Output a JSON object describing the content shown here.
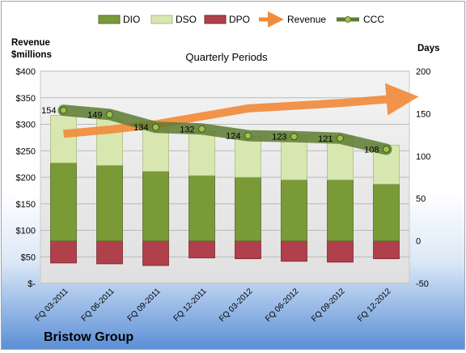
{
  "chart_data": {
    "type": "bar",
    "title": "Quarterly Periods",
    "company": "Bristow Group",
    "left_axis_label_line1": "Revenue",
    "left_axis_label_line2": "$millions",
    "right_axis_label": "Days",
    "categories": [
      "FQ 03-2011",
      "FQ 06-2011",
      "FQ 09-2011",
      "FQ 12-2011",
      "FQ 03-2012",
      "FQ 06-2012",
      "FQ 09-2012",
      "FQ 12-2012"
    ],
    "left_ticks": [
      "$400",
      "$350",
      "$300",
      "$250",
      "$200",
      "$150",
      "$100",
      "$50",
      "$-"
    ],
    "right_ticks": [
      "200",
      "150",
      "100",
      "50",
      "0",
      "-50"
    ],
    "ylim_days": [
      -50,
      200
    ],
    "series": [
      {
        "name": "DIO",
        "type": "stacked-bar",
        "color": "#7a9a38",
        "values": [
          92,
          89,
          82,
          77,
          75,
          72,
          72,
          67
        ]
      },
      {
        "name": "DSO",
        "type": "stacked-bar",
        "color": "#d8e7b0",
        "values": [
          56,
          55,
          54,
          52,
          48,
          52,
          51,
          46
        ]
      },
      {
        "name": "DPO",
        "type": "stacked-bar-negative",
        "color": "#b0404c",
        "values": [
          -26,
          -27,
          -29,
          -20,
          -21,
          -24,
          -25,
          -21
        ]
      },
      {
        "name": "Revenue",
        "type": "arrow",
        "color": "#f28c3c",
        "values": [
          282,
          290,
          300,
          315,
          330,
          335,
          340,
          350
        ]
      },
      {
        "name": "CCC",
        "type": "line",
        "color": "#5c7a30",
        "values": [
          154,
          149,
          134,
          132,
          124,
          123,
          121,
          108
        ]
      }
    ],
    "legend_position": "top"
  }
}
